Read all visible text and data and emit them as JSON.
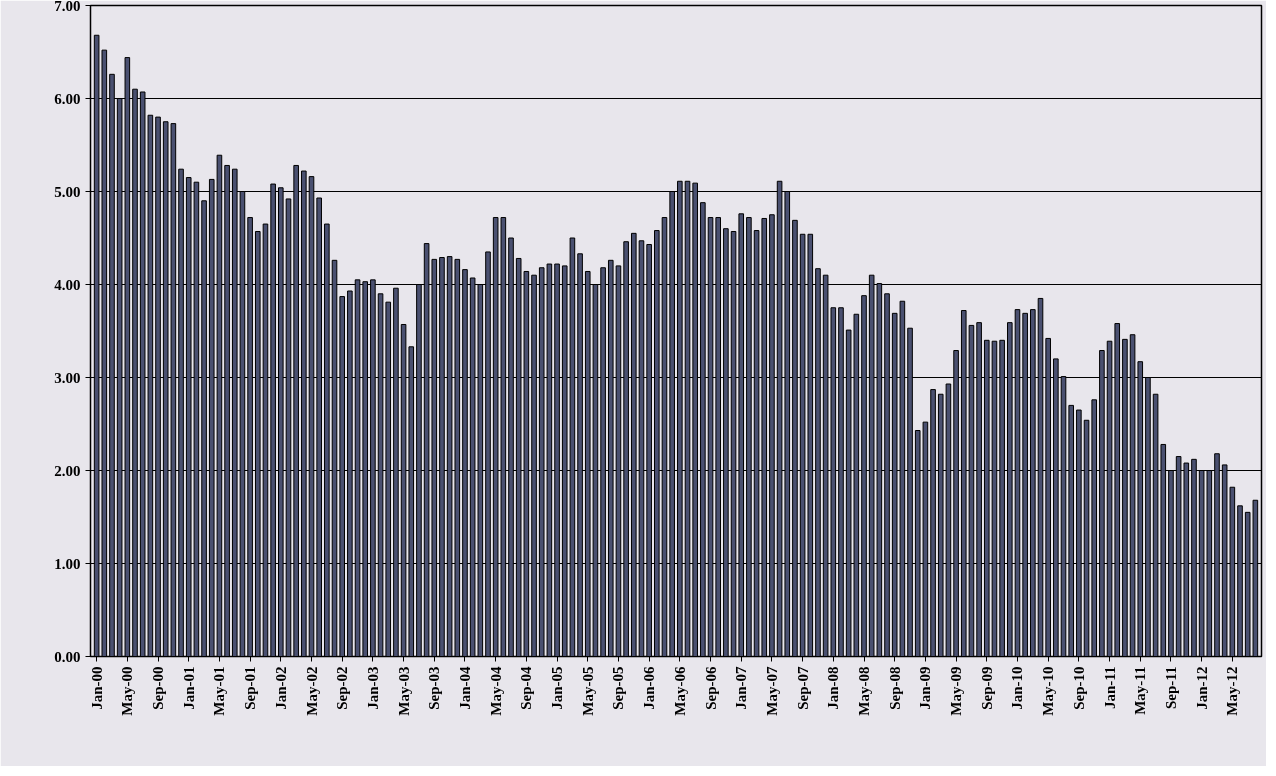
{
  "chart_data": {
    "type": "bar",
    "categories": [
      "Jan-00",
      null,
      null,
      null,
      "May-00",
      null,
      null,
      null,
      "Sep-00",
      null,
      null,
      null,
      "Jan-01",
      null,
      null,
      null,
      "May-01",
      null,
      null,
      null,
      "Sep-01",
      null,
      null,
      null,
      "Jan-02",
      null,
      null,
      null,
      "May-02",
      null,
      null,
      null,
      "Sep-02",
      null,
      null,
      null,
      "Jan-03",
      null,
      null,
      null,
      "May-03",
      null,
      null,
      null,
      "Sep-03",
      null,
      null,
      null,
      "Jan-04",
      null,
      null,
      null,
      "May-04",
      null,
      null,
      null,
      "Sep-04",
      null,
      null,
      null,
      "Jan-05",
      null,
      null,
      null,
      "May-05",
      null,
      null,
      null,
      "Sep-05",
      null,
      null,
      null,
      "Jan-06",
      null,
      null,
      null,
      "May-06",
      null,
      null,
      null,
      "Sep-06",
      null,
      null,
      null,
      "Jan-07",
      null,
      null,
      null,
      "May-07",
      null,
      null,
      null,
      "Sep-07",
      null,
      null,
      null,
      "Jan-08",
      null,
      null,
      null,
      "May-08",
      null,
      null,
      null,
      "Sep-08",
      null,
      null,
      null,
      "Jan-09",
      null,
      null,
      null,
      "May-09",
      null,
      null,
      null,
      "Sep-09",
      null,
      null,
      null,
      "Jan-10",
      null,
      null,
      null,
      "May-10",
      null,
      null,
      null,
      "Sep-10",
      null,
      null,
      null,
      "Jan-11",
      null,
      null,
      null,
      "May-11",
      null,
      null,
      null,
      "Sep-11",
      null,
      null,
      null,
      "Jan-12",
      null,
      null,
      null,
      "May-12",
      null,
      null,
      null
    ],
    "values": [
      6.68,
      6.52,
      6.26,
      6.0,
      6.44,
      6.1,
      6.07,
      5.82,
      5.8,
      5.75,
      5.73,
      5.24,
      5.15,
      5.1,
      4.9,
      5.13,
      5.39,
      5.28,
      5.24,
      5.0,
      4.72,
      4.57,
      4.65,
      5.08,
      5.04,
      4.92,
      5.28,
      5.22,
      5.16,
      4.93,
      4.65,
      4.26,
      3.87,
      3.93,
      4.05,
      4.03,
      4.05,
      3.9,
      3.81,
      3.96,
      3.57,
      3.33,
      4.0,
      4.44,
      4.27,
      4.29,
      4.3,
      4.27,
      4.16,
      4.07,
      4.0,
      4.35,
      4.72,
      4.72,
      4.5,
      4.28,
      4.14,
      4.1,
      4.18,
      4.22,
      4.22,
      4.2,
      4.5,
      4.33,
      4.14,
      4.0,
      4.18,
      4.26,
      4.2,
      4.46,
      4.55,
      4.47,
      4.43,
      4.58,
      4.72,
      5.0,
      5.11,
      5.11,
      5.09,
      4.88,
      4.72,
      4.72,
      4.6,
      4.57,
      4.76,
      4.72,
      4.58,
      4.71,
      4.75,
      5.11,
      5.0,
      4.69,
      4.54,
      4.54,
      4.17,
      4.1,
      3.75,
      3.75,
      3.51,
      3.68,
      3.88,
      4.1,
      4.01,
      3.9,
      3.69,
      3.82,
      3.53,
      2.43,
      2.52,
      2.87,
      2.82,
      2.93,
      3.29,
      3.72,
      3.56,
      3.59,
      3.4,
      3.39,
      3.4,
      3.59,
      3.73,
      3.69,
      3.73,
      3.85,
      3.42,
      3.2,
      3.01,
      2.7,
      2.65,
      2.54,
      2.76,
      3.29,
      3.39,
      3.58,
      3.41,
      3.46,
      3.17,
      3.0,
      2.82,
      2.28,
      2.0,
      2.15,
      2.08,
      2.12,
      2.0,
      2.0,
      2.18,
      2.06,
      1.82,
      1.62,
      1.55,
      1.68
    ],
    "color": "#4a5070",
    "ylim": [
      0,
      7
    ],
    "yticks": [
      {
        "value": 0,
        "label": "0.00"
      },
      {
        "value": 1,
        "label": "1.00"
      },
      {
        "value": 2,
        "label": "2.00"
      },
      {
        "value": 3,
        "label": "3.00"
      },
      {
        "value": 4,
        "label": "4.00"
      },
      {
        "value": 5,
        "label": "5.00"
      },
      {
        "value": 6,
        "label": "6.00"
      },
      {
        "value": 7,
        "label": "7.00"
      }
    ],
    "grid": "y"
  }
}
